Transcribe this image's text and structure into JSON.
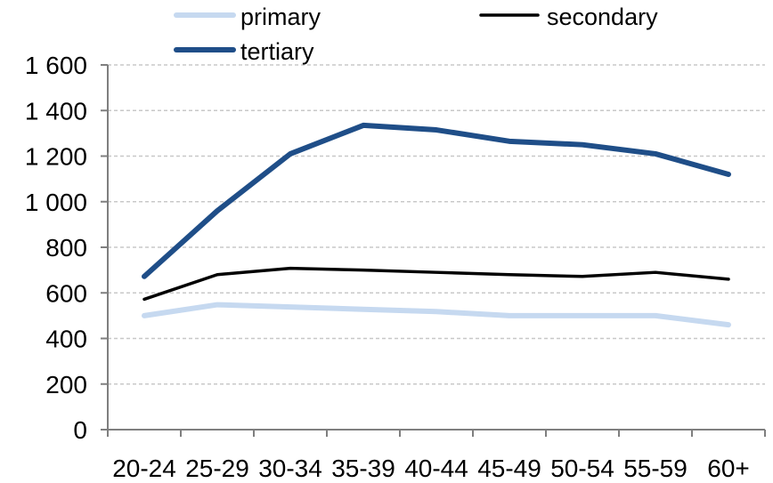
{
  "chart_data": {
    "type": "line",
    "categories": [
      "20-24",
      "25-29",
      "30-34",
      "35-39",
      "40-44",
      "45-49",
      "50-54",
      "55-59",
      "60+"
    ],
    "series": [
      {
        "name": "primary",
        "color": "#c6d9f0",
        "values": [
          500,
          548,
          538,
          528,
          518,
          500,
          500,
          500,
          460
        ]
      },
      {
        "name": "secondary",
        "color": "#000000",
        "values": [
          572,
          680,
          708,
          700,
          690,
          680,
          672,
          690,
          660
        ]
      },
      {
        "name": "tertiary",
        "color": "#1f4e88",
        "values": [
          672,
          960,
          1210,
          1335,
          1315,
          1265,
          1250,
          1210,
          1120
        ]
      }
    ],
    "yticks": [
      "0",
      "200",
      "400",
      "600",
      "800",
      "1 000",
      "1 200",
      "1 400",
      "1 600"
    ],
    "ylim": [
      0,
      1600
    ],
    "grid": true,
    "legend_position": "top"
  }
}
